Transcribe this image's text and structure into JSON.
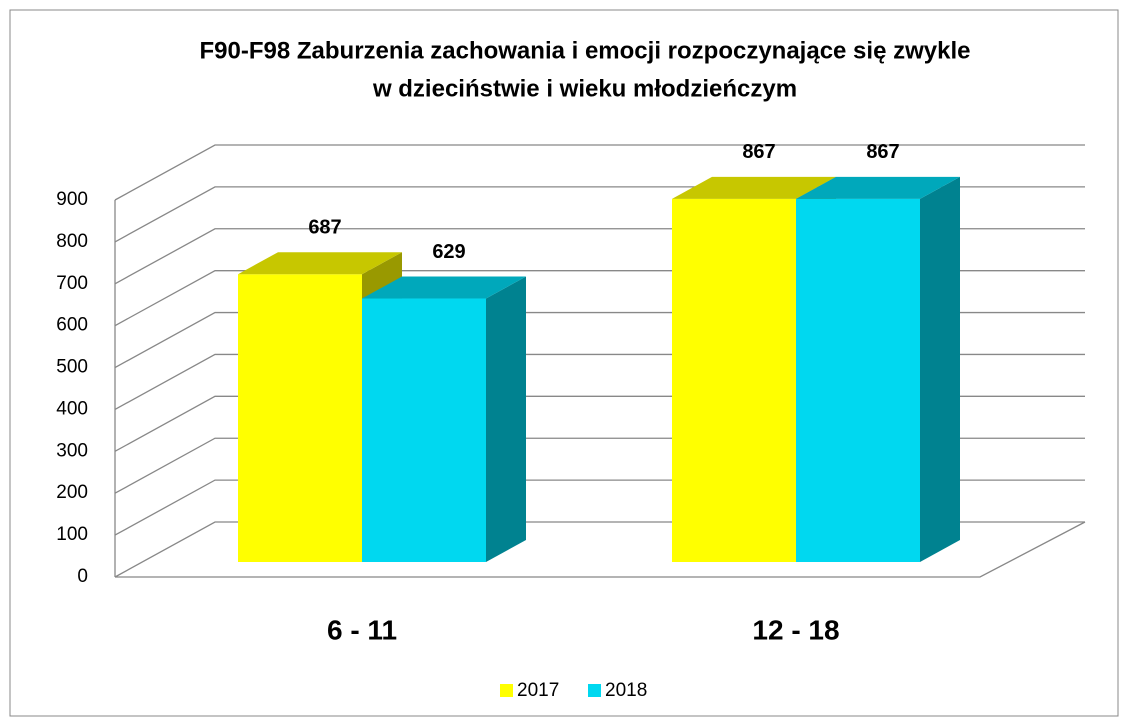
{
  "chart_data": {
    "type": "bar3d",
    "title": [
      "F90-F98 Zaburzenia zachowania i emocji rozpoczynające się zwykle",
      "w dzieciństwie i wieku młodzieńczym"
    ],
    "categories": [
      "6 - 11",
      "12 - 18"
    ],
    "series": [
      {
        "name": "2017",
        "color": "#ffff00",
        "values": [
          687,
          867
        ]
      },
      {
        "name": "2018",
        "color": "#00d8f0",
        "values": [
          629,
          867
        ]
      }
    ],
    "ylim": [
      0,
      900
    ],
    "yticks": [
      0,
      100,
      200,
      300,
      400,
      500,
      600,
      700,
      800,
      900
    ],
    "grid": true,
    "legend": "bottom"
  }
}
